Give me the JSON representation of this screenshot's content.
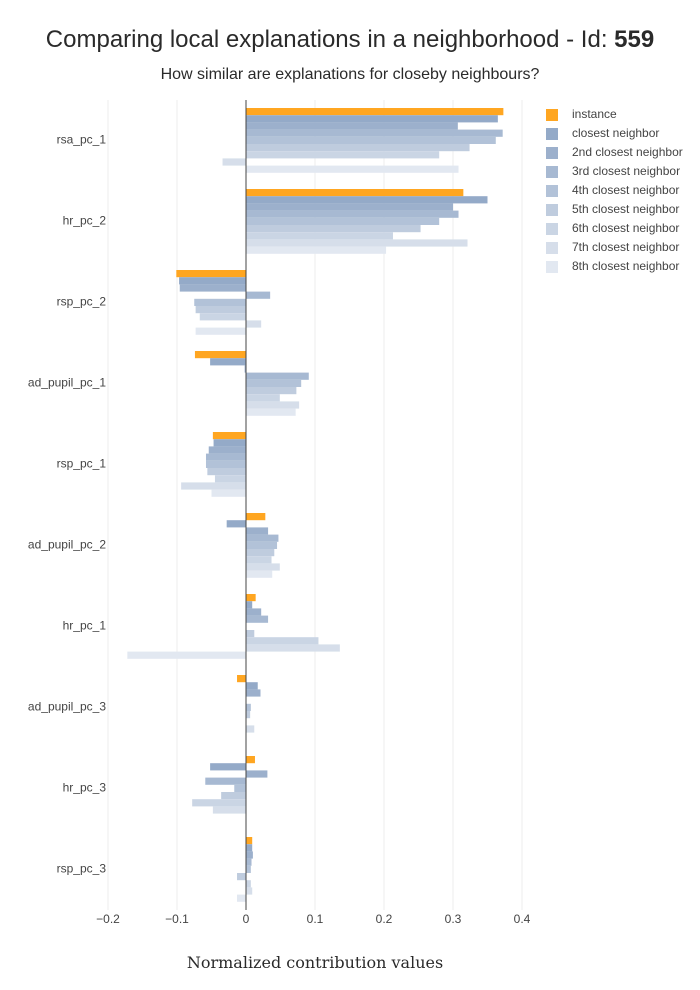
{
  "chart_data": {
    "type": "bar",
    "orientation": "horizontal",
    "title_prefix": "Comparing local explanations in a neighborhood - Id: ",
    "title_id": "559",
    "subtitle": "How similar are explanations for closeby neighbours?",
    "xlabel": "Normalized contribution values",
    "xlim": [
      -0.2,
      0.4
    ],
    "xticks": [
      -0.2,
      -0.1,
      0,
      0.1,
      0.2,
      0.3,
      0.4
    ],
    "xtick_labels": [
      "−0.2",
      "−0.1",
      "0",
      "0.1",
      "0.2",
      "0.3",
      "0.4"
    ],
    "grid": true,
    "legend_position": "top-right",
    "categories": [
      "rsa_pc_1",
      "hr_pc_2",
      "rsp_pc_2",
      "ad_pupil_pc_1",
      "rsp_pc_1",
      "ad_pupil_pc_2",
      "hr_pc_1",
      "ad_pupil_pc_3",
      "hr_pc_3",
      "rsp_pc_3"
    ],
    "series": [
      {
        "name": "instance",
        "color": "#FFA621",
        "values": [
          0.373,
          0.315,
          -0.101,
          -0.074,
          -0.048,
          0.028,
          0.014,
          -0.013,
          0.013,
          0.009
        ]
      },
      {
        "name": "closest neighbor",
        "color": "#94AAC8",
        "values": [
          0.365,
          0.35,
          -0.097,
          -0.052,
          -0.047,
          -0.028,
          0.009,
          0.017,
          -0.052,
          0.009
        ]
      },
      {
        "name": "2nd closest neighbor",
        "color": "#9CB0CC",
        "values": [
          0.307,
          0.3,
          -0.096,
          -0.002,
          -0.054,
          0.032,
          0.022,
          0.021,
          0.031,
          0.01
        ]
      },
      {
        "name": "3rd closest neighbor",
        "color": "#A7B9D2",
        "values": [
          0.372,
          0.308,
          0.035,
          0.091,
          -0.058,
          0.047,
          0.032,
          0.0,
          -0.059,
          0.008
        ]
      },
      {
        "name": "4th closest neighbor",
        "color": "#B2C2D8",
        "values": [
          0.362,
          0.28,
          -0.075,
          0.08,
          -0.058,
          0.045,
          0.0,
          0.007,
          -0.017,
          0.007
        ]
      },
      {
        "name": "5th closest neighbor",
        "color": "#BFCCDE",
        "values": [
          0.324,
          0.253,
          -0.073,
          0.073,
          -0.056,
          0.041,
          0.012,
          0.006,
          -0.036,
          -0.013
        ]
      },
      {
        "name": "6th closest neighbor",
        "color": "#CAD5E4",
        "values": [
          0.28,
          0.213,
          -0.067,
          0.049,
          -0.045,
          0.037,
          0.105,
          0.0,
          -0.078,
          0.007
        ]
      },
      {
        "name": "7th closest neighbor",
        "color": "#D6DEEA",
        "values": [
          -0.034,
          0.321,
          0.022,
          0.077,
          -0.094,
          0.049,
          0.136,
          0.012,
          -0.048,
          0.009
        ]
      },
      {
        "name": "8th closest neighbor",
        "color": "#E2E8F1",
        "values": [
          0.308,
          0.203,
          -0.073,
          0.072,
          -0.05,
          0.038,
          -0.172,
          0.0,
          0.0,
          -0.013
        ]
      }
    ]
  }
}
